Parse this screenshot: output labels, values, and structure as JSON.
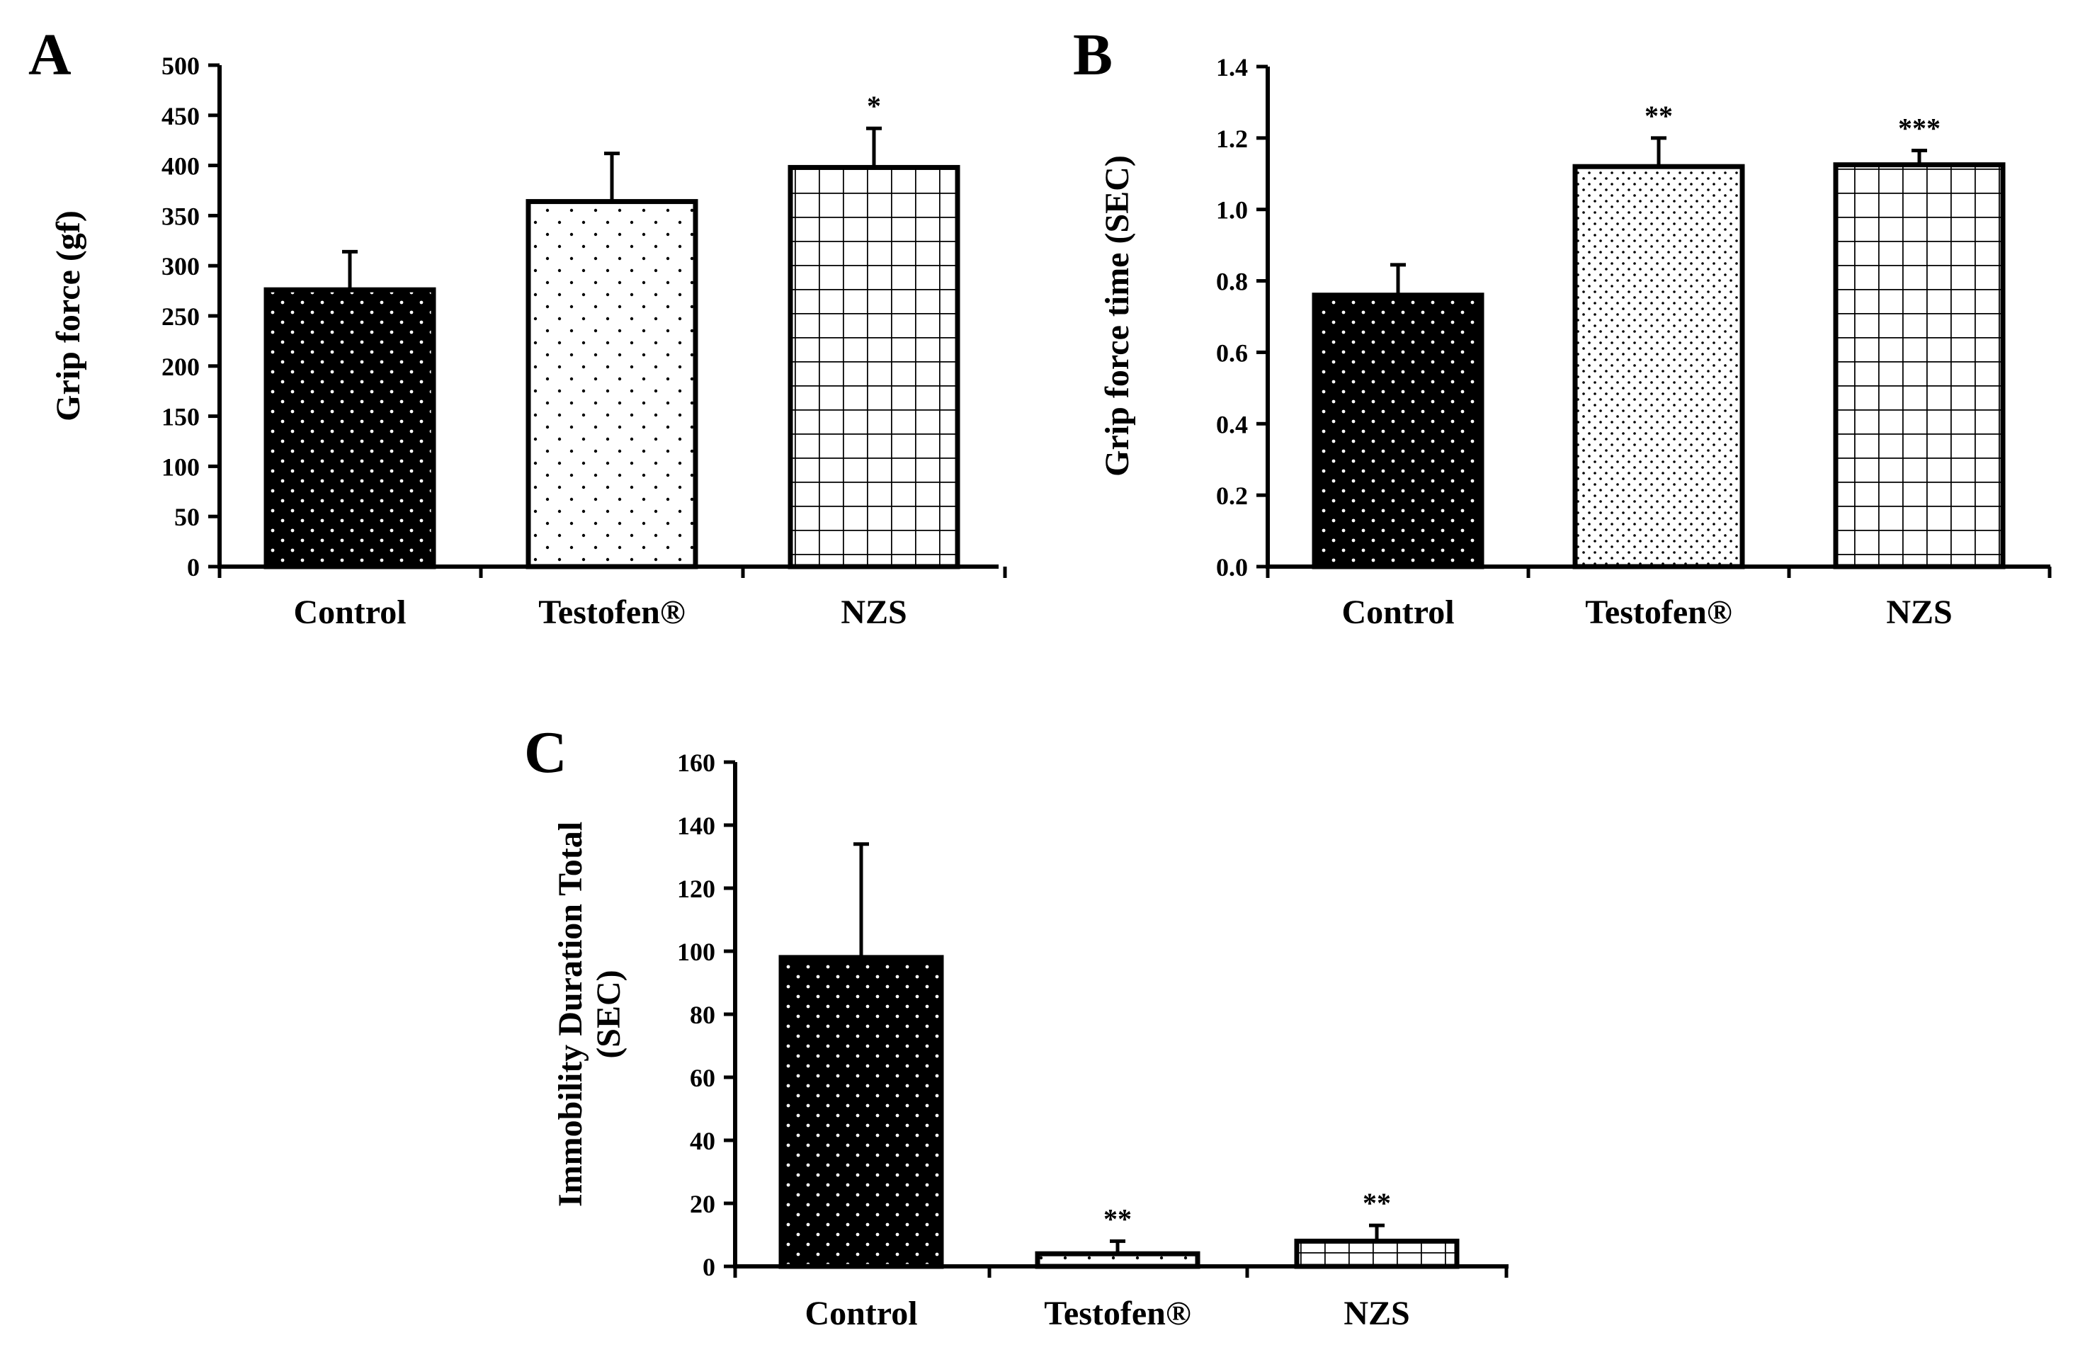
{
  "chart_data": [
    {
      "id": "A",
      "type": "bar",
      "panel_label": "A",
      "title": "",
      "xlabel": "",
      "ylabel": "Grip force (gf)",
      "categories": [
        "Control",
        "Testofen®",
        "NZS"
      ],
      "values": [
        276,
        364,
        398
      ],
      "errors": [
        38,
        48,
        39
      ],
      "significance": [
        "",
        "",
        "*"
      ],
      "patterns": [
        "dark-dots",
        "light-dots",
        "grid"
      ],
      "ylim": [
        0,
        500
      ],
      "yticks": [
        0,
        50,
        100,
        150,
        200,
        250,
        300,
        350,
        400,
        450,
        500
      ],
      "ytick_labels": [
        "0",
        "50",
        "100",
        "150",
        "200",
        "250",
        "300",
        "350",
        "400",
        "450",
        "500"
      ],
      "grid": false
    },
    {
      "id": "B",
      "type": "bar",
      "panel_label": "B",
      "title": "",
      "xlabel": "",
      "ylabel": "Grip force time (SEC)",
      "categories": [
        "Control",
        "Testofen®",
        "NZS"
      ],
      "values": [
        0.76,
        1.12,
        1.125
      ],
      "errors": [
        0.085,
        0.08,
        0.04
      ],
      "significance": [
        "",
        "**",
        "***"
      ],
      "patterns": [
        "dark-dots",
        "fine-dots",
        "grid"
      ],
      "ylim": [
        0,
        1.4
      ],
      "yticks": [
        0,
        0.2,
        0.4,
        0.6,
        0.8,
        1.0,
        1.2,
        1.4
      ],
      "ytick_labels": [
        "0.0",
        "0.2",
        "0.4",
        "0.6",
        "0.8",
        "1.0",
        "1.2",
        "1.4"
      ],
      "grid": false
    },
    {
      "id": "C",
      "type": "bar",
      "panel_label": "C",
      "title": "",
      "xlabel": "",
      "ylabel_lines": [
        "Immobility Duration Total",
        "(SEC)"
      ],
      "categories": [
        "Control",
        "Testofen®",
        "NZS"
      ],
      "values": [
        98,
        4,
        8
      ],
      "errors": [
        36,
        4,
        5
      ],
      "significance": [
        "",
        "**",
        "**"
      ],
      "patterns": [
        "dark-dots",
        "light-dots",
        "grid"
      ],
      "ylim": [
        0,
        160
      ],
      "yticks": [
        0,
        20,
        40,
        60,
        80,
        100,
        120,
        140,
        160
      ],
      "ytick_labels": [
        "0",
        "20",
        "40",
        "60",
        "80",
        "100",
        "120",
        "140",
        "160"
      ],
      "grid": false
    }
  ]
}
